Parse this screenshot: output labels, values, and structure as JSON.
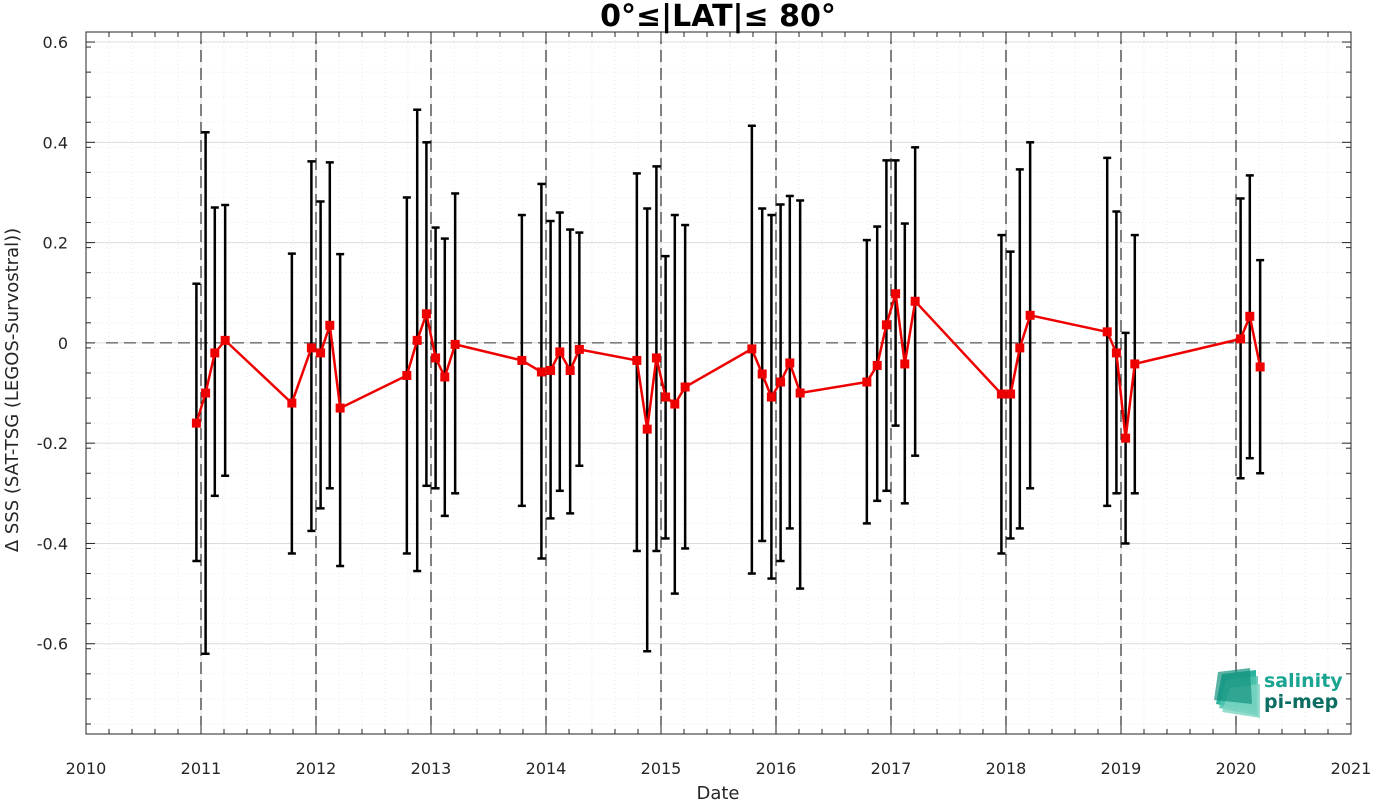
{
  "chart_data": {
    "type": "line",
    "title": "0°≤|LAT|≤ 80°",
    "xlabel": "Date",
    "ylabel": "Δ SSS (SAT-TSG (LEGOS-Survostral))",
    "xlim": [
      2010,
      2021
    ],
    "ylim": [
      -0.78,
      0.62
    ],
    "x_ticks": [
      2010,
      2011,
      2012,
      2013,
      2014,
      2015,
      2016,
      2017,
      2018,
      2019,
      2020,
      2021
    ],
    "y_ticks": [
      0.6,
      0.4,
      0.2,
      0,
      -0.2,
      -0.4,
      -0.6
    ],
    "y_tick_labels": [
      "0.6",
      "0.4",
      "0.2",
      "0",
      "-0.2",
      "-0.4",
      "-0.6"
    ],
    "grid": true,
    "minor_grid": true,
    "reference_line_y": 0,
    "year_lines": [
      2011,
      2012,
      2013,
      2014,
      2015,
      2016,
      2017,
      2018,
      2019,
      2020
    ],
    "series": [
      {
        "color": "#ee0000",
        "x": [
          2010.96,
          2011.04,
          2011.12,
          2011.21,
          2011.79,
          2011.96,
          2012.04,
          2012.12,
          2012.21,
          2012.79,
          2012.88,
          2012.96,
          2013.04,
          2013.12,
          2013.21,
          2013.79,
          2013.96,
          2014.04,
          2014.12,
          2014.21,
          2014.29,
          2014.79,
          2014.88,
          2014.96,
          2015.04,
          2015.12,
          2015.21,
          2015.79,
          2015.88,
          2015.96,
          2016.04,
          2016.12,
          2016.21,
          2016.79,
          2016.88,
          2016.96,
          2017.04,
          2017.12,
          2017.21,
          2017.96,
          2018.04,
          2018.12,
          2018.21,
          2018.88,
          2018.96,
          2019.04,
          2019.12,
          2020.04,
          2020.12,
          2020.21
        ],
        "y": [
          -0.16,
          -0.1,
          -0.02,
          0.005,
          -0.12,
          -0.01,
          -0.02,
          0.035,
          -0.13,
          -0.065,
          0.005,
          0.058,
          -0.03,
          -0.068,
          -0.003,
          -0.035,
          -0.058,
          -0.055,
          -0.018,
          -0.055,
          -0.013,
          -0.035,
          -0.172,
          -0.03,
          -0.108,
          -0.122,
          -0.088,
          -0.012,
          -0.062,
          -0.108,
          -0.078,
          -0.04,
          -0.1,
          -0.078,
          -0.045,
          0.036,
          0.098,
          -0.042,
          0.083,
          -0.102,
          -0.102,
          -0.01,
          0.055,
          0.022,
          -0.02,
          -0.19,
          -0.042,
          0.008,
          0.053,
          -0.048
        ],
        "err_low": [
          -0.435,
          -0.62,
          -0.305,
          -0.265,
          -0.42,
          -0.375,
          -0.33,
          -0.29,
          -0.445,
          -0.42,
          -0.455,
          -0.285,
          -0.29,
          -0.345,
          -0.3,
          -0.325,
          -0.43,
          -0.35,
          -0.295,
          -0.34,
          -0.245,
          -0.415,
          -0.615,
          -0.415,
          -0.39,
          -0.5,
          -0.41,
          -0.46,
          -0.395,
          -0.47,
          -0.435,
          -0.37,
          -0.49,
          -0.36,
          -0.315,
          -0.295,
          -0.165,
          -0.32,
          -0.225,
          -0.42,
          -0.39,
          -0.37,
          -0.29,
          -0.325,
          -0.3,
          -0.4,
          -0.3,
          -0.27,
          -0.23,
          -0.26
        ],
        "err_high": [
          0.118,
          0.42,
          0.27,
          0.275,
          0.178,
          0.362,
          0.282,
          0.36,
          0.177,
          0.29,
          0.465,
          0.4,
          0.23,
          0.208,
          0.298,
          0.255,
          0.317,
          0.243,
          0.26,
          0.226,
          0.22,
          0.338,
          0.268,
          0.352,
          0.173,
          0.255,
          0.235,
          0.433,
          0.268,
          0.255,
          0.276,
          0.293,
          0.284,
          0.205,
          0.232,
          0.364,
          0.364,
          0.238,
          0.39,
          0.215,
          0.182,
          0.346,
          0.4,
          0.369,
          0.262,
          0.02,
          0.215,
          0.288,
          0.334,
          0.165
        ]
      }
    ]
  },
  "logo": {
    "line1": "salinity",
    "line2": "pi-mep",
    "color1": "#1aa592",
    "color2": "#0d6e63"
  },
  "colors": {
    "axis": "#262626",
    "errorbar": "#000000",
    "series": "#ee0000",
    "grid_major": "#dcdcdc",
    "grid_minor": "#e8e8e8"
  }
}
